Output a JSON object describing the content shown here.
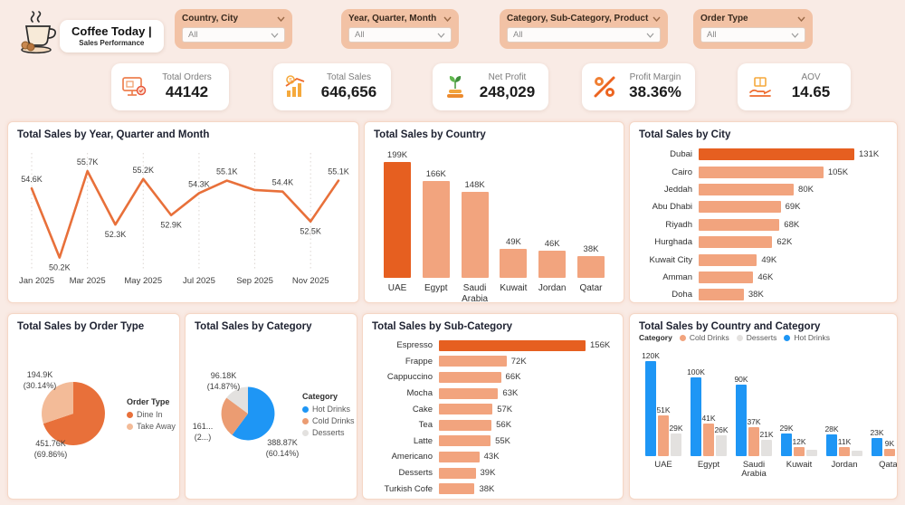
{
  "header": {
    "brand": {
      "title": "Coffee Today |",
      "subtitle": "Sales Performance"
    },
    "filters": [
      {
        "label": "Country, City",
        "value": "All"
      },
      {
        "label": "Year, Quarter, Month",
        "value": "All"
      },
      {
        "label": "Category, Sub-Category, Product",
        "value": "All"
      },
      {
        "label": "Order Type",
        "value": "All"
      }
    ]
  },
  "kpis": [
    {
      "label": "Total Orders",
      "value": "44142",
      "icon": "orders-monitor-icon"
    },
    {
      "label": "Total Sales",
      "value": "646,656",
      "icon": "sales-growth-icon"
    },
    {
      "label": "Net Profit",
      "value": "248,029",
      "icon": "profit-plant-icon"
    },
    {
      "label": "Profit Margin",
      "value": "38.36%",
      "icon": "percent-icon"
    },
    {
      "label": "AOV",
      "value": "14.65",
      "icon": "hand-box-icon"
    }
  ],
  "colors": {
    "page_bg": "#f9ebe5",
    "accent_orange": "#e8703a",
    "dark_orange": "#e65f20",
    "light_orange": "#f2a47e",
    "pale_orange": "#f3bb98",
    "blue": "#1e96f5",
    "gray_slice": "#e3e1df",
    "pill_bg": "#f2c2a5"
  },
  "chart_data": [
    {
      "type": "line",
      "title": "Total Sales by Year, Quarter and Month",
      "x": [
        "Jan 2025",
        "Feb 2025",
        "Mar 2025",
        "Apr 2025",
        "May 2025",
        "Jun 2025",
        "Jul 2025",
        "Aug 2025",
        "Sep 2025",
        "Oct 2025",
        "Nov 2025",
        "Dec 2025"
      ],
      "values": [
        54.6,
        50.2,
        55.7,
        52.3,
        55.2,
        52.9,
        54.3,
        55.1,
        54.5,
        54.4,
        52.5,
        55.1
      ],
      "labels": [
        "54.6K",
        "50.2K",
        "55.7K",
        "52.3K",
        "55.2K",
        "52.9K",
        "54.3K",
        "55.1K",
        "",
        "54.4K",
        "52.5K",
        "55.1K"
      ],
      "axis_ticks": [
        "Jan 2025",
        "Mar 2025",
        "May 2025",
        "Jul 2025",
        "Sep 2025",
        "Nov 2025"
      ],
      "tick_indices": [
        0,
        2,
        4,
        6,
        8,
        10
      ],
      "ylim": [
        49.6,
        56.4
      ],
      "line_color": "#e8703a"
    },
    {
      "type": "bar",
      "title": "Total Sales by Country",
      "categories": [
        "UAE",
        "Egypt",
        "Saudi Arabia",
        "Kuwait",
        "Jordan",
        "Qatar"
      ],
      "values": [
        199,
        166,
        148,
        49,
        46,
        38
      ],
      "labels": [
        "199K",
        "166K",
        "148K",
        "49K",
        "46K",
        "38K"
      ],
      "highlight_index": 0,
      "bar_color": "#f2a47e",
      "highlight_color": "#e65f20"
    },
    {
      "type": "bar-horizontal",
      "title": "Total Sales by City",
      "categories": [
        "Dubai",
        "Cairo",
        "Jeddah",
        "Abu Dhabi",
        "Riyadh",
        "Hurghada",
        "Kuwait City",
        "Amman",
        "Doha"
      ],
      "values": [
        131,
        105,
        80,
        69,
        68,
        62,
        49,
        46,
        38
      ],
      "labels": [
        "131K",
        "105K",
        "80K",
        "69K",
        "68K",
        "62K",
        "49K",
        "46K",
        "38K"
      ],
      "highlight_index": 0,
      "bar_color": "#f2a47e",
      "highlight_color": "#e65f20"
    },
    {
      "type": "pie",
      "title": "Total Sales by Order Type",
      "legend_title": "Order Type",
      "slices": [
        {
          "name": "Dine In",
          "pct": 69.86,
          "label_value": "451.76K",
          "label_pct": "(69.86%)",
          "color": "#e8703a"
        },
        {
          "name": "Take Away",
          "pct": 30.14,
          "label_value": "194.9K",
          "label_pct": "(30.14%)",
          "color": "#f3bb98"
        }
      ]
    },
    {
      "type": "pie",
      "title": "Total Sales by Category",
      "legend_title": "Category",
      "slices": [
        {
          "name": "Hot  Drinks",
          "pct": 60.14,
          "label_value": "388.87K",
          "label_pct": "(60.14%)",
          "color": "#1e96f5"
        },
        {
          "name": "Cold  Drinks",
          "pct": 24.99,
          "label_value": "161...",
          "label_pct": "(2...)",
          "color": "#eb9c72"
        },
        {
          "name": "Desserts",
          "pct": 14.87,
          "label_value": "96.18K",
          "label_pct": "(14.87%)",
          "color": "#e3e1df"
        }
      ]
    },
    {
      "type": "bar-horizontal",
      "title": "Total Sales by Sub-Category",
      "categories": [
        "Espresso",
        "Frappe",
        "Cappuccino",
        "Mocha",
        "Cake",
        "Tea",
        "Latte",
        "Americano",
        "Desserts",
        "Turkish Cofe"
      ],
      "values": [
        156,
        72,
        66,
        63,
        57,
        56,
        55,
        43,
        39,
        38
      ],
      "labels": [
        "156K",
        "72K",
        "66K",
        "63K",
        "57K",
        "56K",
        "55K",
        "43K",
        "39K",
        "38K"
      ],
      "highlight_index": 0,
      "bar_color": "#f2a47e",
      "highlight_color": "#e65f20"
    },
    {
      "type": "grouped-bar",
      "title": "Total Sales by Country and Category",
      "legend_title": "Category",
      "legend_order": [
        "Cold  Drinks",
        "Desserts",
        "Hot  Drinks"
      ],
      "categories": [
        "UAE",
        "Egypt",
        "Saudi Arabia",
        "Kuwait",
        "Jordan",
        "Qatar"
      ],
      "ymax": 120,
      "series": [
        {
          "name": "Hot  Drinks",
          "color": "#1e96f5",
          "values": [
            120,
            100,
            90,
            29,
            28,
            23
          ],
          "labels": [
            "120K",
            "100K",
            "90K",
            "29K",
            "28K",
            "23K"
          ]
        },
        {
          "name": "Cold  Drinks",
          "color": "#f2a47e",
          "values": [
            51,
            41,
            37,
            12,
            11,
            9
          ],
          "labels": [
            "51K",
            "41K",
            "37K",
            "12K",
            "11K",
            "9K"
          ]
        },
        {
          "name": "Desserts",
          "color": "#e3e1df",
          "values": [
            29,
            26,
            21,
            8,
            7,
            6
          ],
          "labels": [
            "29K",
            "26K",
            "21K",
            "",
            "",
            "6K"
          ]
        }
      ]
    }
  ]
}
